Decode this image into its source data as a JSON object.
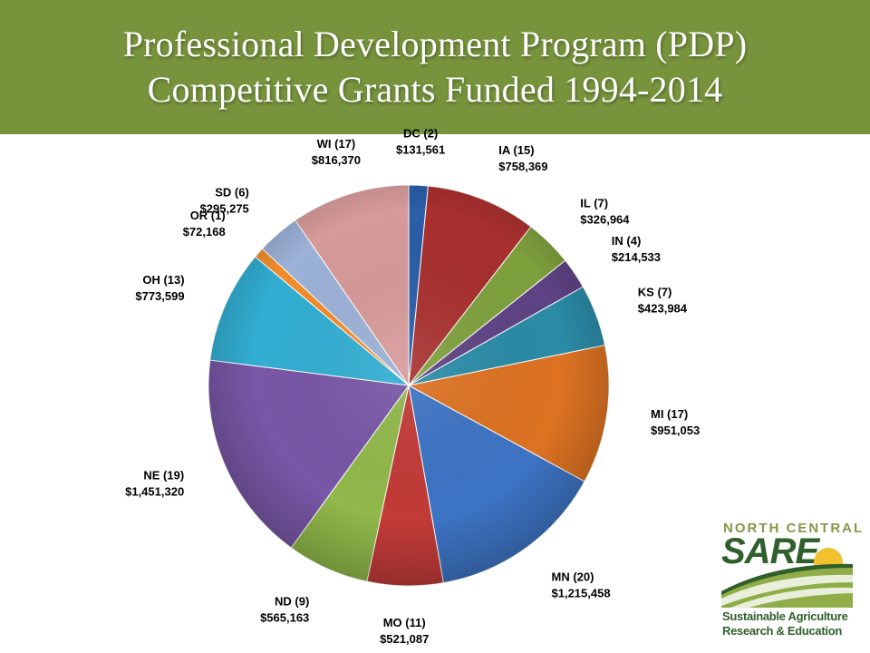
{
  "slide": {
    "title_line1": "Professional Development Program (PDP)",
    "title_line2": "Competitive Grants Funded  1994-2014",
    "header_color": "#77933c"
  },
  "logo": {
    "line1": "NORTH CENTRAL",
    "line2": "SARE",
    "line3": "Sustainable Agriculture",
    "line4": "Research & Education"
  },
  "chart_data": {
    "type": "pie",
    "start_angle": "12 o'clock",
    "direction": "clockwise",
    "legend": "none",
    "slices": [
      {
        "state": "DC",
        "count": 2,
        "value": 131561,
        "label": "DC (2)",
        "amount": "$131,561",
        "color": "#2a5ea8"
      },
      {
        "state": "IA",
        "count": 15,
        "value": 758369,
        "label": "IA (15)",
        "amount": "$758,369",
        "color": "#a8302e"
      },
      {
        "state": "IL",
        "count": 7,
        "value": 326964,
        "label": "IL (7)",
        "amount": "$326,964",
        "color": "#7ea03c"
      },
      {
        "state": "IN",
        "count": 4,
        "value": 214533,
        "label": "IN (4)",
        "amount": "$214,533",
        "color": "#5e4384"
      },
      {
        "state": "KS",
        "count": 7,
        "value": 423984,
        "label": "KS (7)",
        "amount": "$423,984",
        "color": "#2b8ba6"
      },
      {
        "state": "MI",
        "count": 17,
        "value": 951053,
        "label": "MI (17)",
        "amount": "$951,053",
        "color": "#dd7222"
      },
      {
        "state": "MN",
        "count": 20,
        "value": 1215458,
        "label": "MN (20)",
        "amount": "$1,215,458",
        "color": "#3d74c4"
      },
      {
        "state": "MO",
        "count": 11,
        "value": 521087,
        "label": "MO (11)",
        "amount": "$521,087",
        "color": "#c23b38"
      },
      {
        "state": "ND",
        "count": 9,
        "value": 565163,
        "label": "ND (9)",
        "amount": "$565,163",
        "color": "#91b84a"
      },
      {
        "state": "NE",
        "count": 19,
        "value": 1451320,
        "label": "NE (19)",
        "amount": "$1,451,320",
        "color": "#7857a6"
      },
      {
        "state": "OH",
        "count": 13,
        "value": 773599,
        "label": "OH (13)",
        "amount": "$773,599",
        "color": "#32aed2"
      },
      {
        "state": "OR",
        "count": 1,
        "value": 72168,
        "label": "OR (1)",
        "amount": "$72,168",
        "color": "#f28d2c"
      },
      {
        "state": "SD",
        "count": 6,
        "value": 295275,
        "label": "SD (6)",
        "amount": "$295,275",
        "color": "#9bb1d6"
      },
      {
        "state": "WI",
        "count": 17,
        "value": 816370,
        "label": "WI (17)",
        "amount": "$816,370",
        "color": "#d79a9a"
      }
    ]
  }
}
